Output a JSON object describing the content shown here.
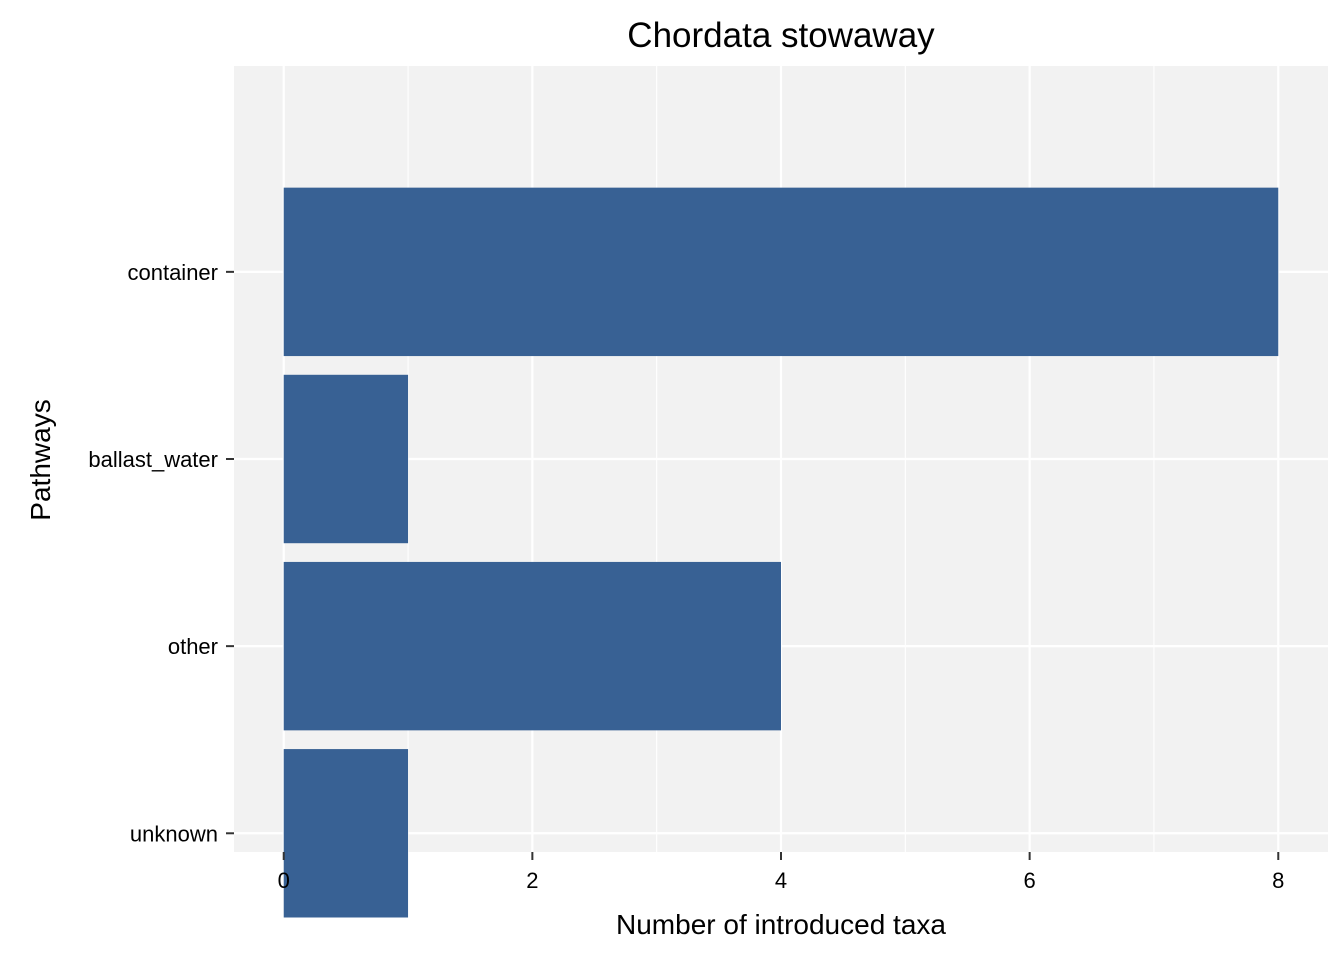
{
  "chart_data": {
    "type": "bar",
    "orientation": "horizontal",
    "title": "Chordata stowaway",
    "xlabel": "Number of introduced taxa",
    "ylabel": "Pathways",
    "categories": [
      "container",
      "ballast_water",
      "other",
      "unknown"
    ],
    "values": [
      8,
      1,
      4,
      1
    ],
    "xlim": [
      -0.4,
      8.4
    ],
    "xticks": [
      0,
      2,
      4,
      6,
      8
    ],
    "grid": true,
    "legend": "none",
    "colors": {
      "bar": "#386194",
      "panel": "#f2f2f2",
      "grid": "#ffffff"
    }
  }
}
